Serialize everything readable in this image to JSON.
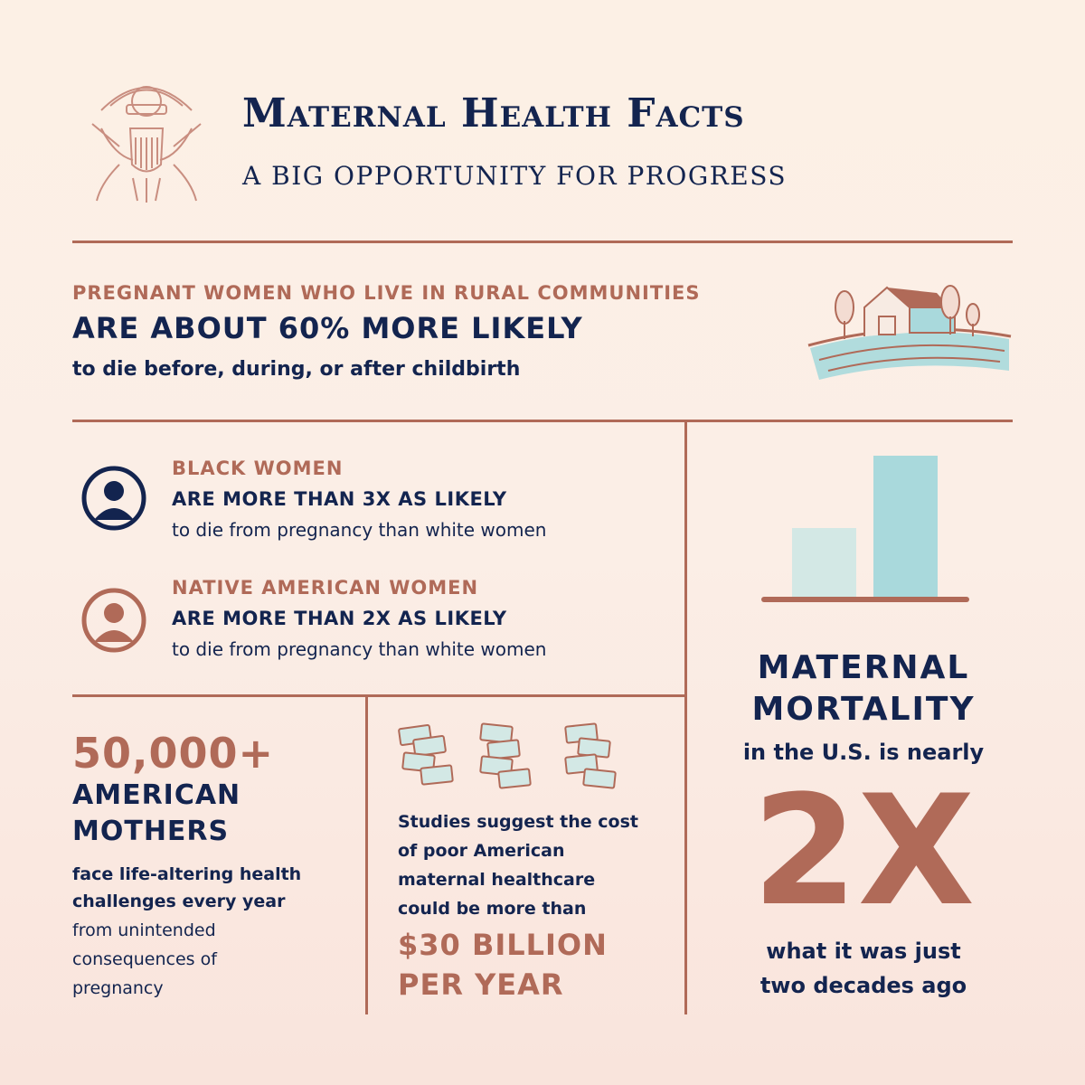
{
  "header": {
    "title": "Maternal Health Facts",
    "subtitle": "A BIG OPPORTUNITY FOR PROGRESS"
  },
  "rural": {
    "lead": "PREGNANT WOMEN WHO LIVE IN RURAL COMMUNITIES",
    "headline": "ARE ABOUT 60% MORE LIKELY",
    "detail": "to die before, during, or after childbirth"
  },
  "black_women": {
    "label": "BLACK WOMEN",
    "headline": "ARE MORE THAN 3X AS LIKELY",
    "detail": "to die from pregnancy than white women"
  },
  "native_women": {
    "label": "NATIVE AMERICAN WOMEN",
    "headline": "ARE MORE THAN 2X AS LIKELY",
    "detail": "to die from pregnancy than white women"
  },
  "mothers": {
    "number": "50,000+",
    "line1": "AMERICAN",
    "line2": "MOTHERS",
    "bold1": "face life-altering health",
    "bold2": "challenges every year",
    "rest1": "from unintended",
    "rest2": "consequences of",
    "rest3": "pregnancy"
  },
  "cost": {
    "line1": "Studies suggest the cost",
    "line2": "of poor American",
    "line3": "maternal healthcare",
    "line4": "could be more than",
    "amount1": "$30 BILLION",
    "amount2": "PER YEAR"
  },
  "mortality": {
    "line1": "MATERNAL",
    "line2": "MORTALITY",
    "line3": "in the U.S. is nearly",
    "big": "2X",
    "line4": "what it was just",
    "line5": "two decades ago",
    "bar_values": [
      1,
      2
    ]
  },
  "colors": {
    "navy": "#13244f",
    "rust": "#b06a58",
    "bar_light": "#d3e8e5",
    "bar_dark": "#a9d9dc"
  }
}
